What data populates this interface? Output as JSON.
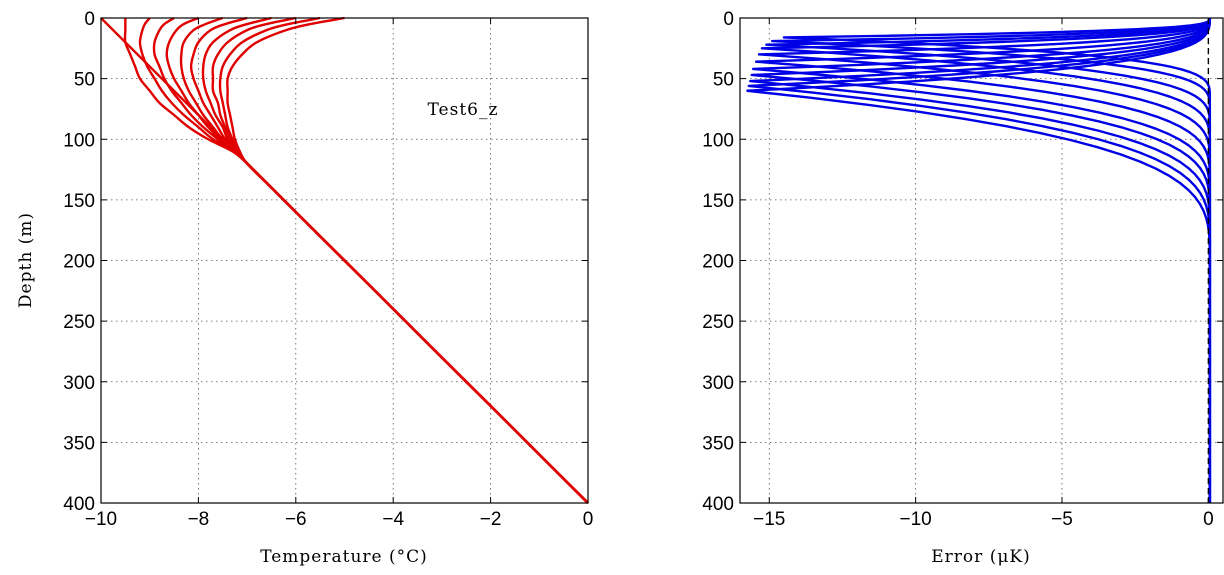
{
  "chart_data": [
    {
      "type": "line",
      "title": "",
      "annotation": "Test6_z",
      "xlabel": "Temperature (°C)",
      "ylabel": "Depth (m)",
      "xlim": [
        -10,
        0
      ],
      "ylim": [
        400,
        0
      ],
      "y_reversed": true,
      "grid": true,
      "xticks": [
        "−10",
        "−8",
        "−6",
        "−4",
        "−2",
        "0"
      ],
      "yticks": [
        "0",
        "50",
        "100",
        "150",
        "200",
        "250",
        "300",
        "350",
        "400"
      ],
      "color": "#e00000",
      "depth": [
        0,
        5,
        10,
        20,
        30,
        40,
        50,
        60,
        70,
        80,
        90,
        100,
        110,
        120,
        140,
        170,
        200,
        250,
        300,
        350,
        400
      ],
      "series": [
        {
          "surface_temperature": -9.5,
          "values": [
            -9.5,
            -9.5,
            -9.5,
            -9.5,
            -9.4,
            -9.3,
            -9.2,
            -9.0,
            -8.8,
            -8.5,
            -8.2,
            -7.8,
            -7.3,
            -7.0,
            -6.5,
            -5.75,
            -5.0,
            -3.75,
            -2.5,
            -1.25,
            0
          ]
        },
        {
          "surface_temperature": -9.0,
          "values": [
            -9.0,
            -9.1,
            -9.15,
            -9.2,
            -9.15,
            -9.05,
            -8.9,
            -8.75,
            -8.55,
            -8.3,
            -8.0,
            -7.7,
            -7.25,
            -7.0,
            -6.5,
            -5.75,
            -5.0,
            -3.75,
            -2.5,
            -1.25,
            0
          ]
        },
        {
          "surface_temperature": -8.5,
          "values": [
            -8.5,
            -8.7,
            -8.8,
            -8.9,
            -8.9,
            -8.8,
            -8.7,
            -8.55,
            -8.35,
            -8.15,
            -7.9,
            -7.6,
            -7.25,
            -7.0,
            -6.5,
            -5.75,
            -5.0,
            -3.75,
            -2.5,
            -1.25,
            0
          ]
        },
        {
          "surface_temperature": -8.0,
          "values": [
            -8.0,
            -8.3,
            -8.45,
            -8.6,
            -8.65,
            -8.6,
            -8.5,
            -8.35,
            -8.2,
            -8.0,
            -7.8,
            -7.55,
            -7.25,
            -7.0,
            -6.5,
            -5.75,
            -5.0,
            -3.75,
            -2.5,
            -1.25,
            0
          ]
        },
        {
          "surface_temperature": -7.5,
          "values": [
            -7.5,
            -7.85,
            -8.1,
            -8.3,
            -8.35,
            -8.35,
            -8.3,
            -8.2,
            -8.05,
            -7.9,
            -7.7,
            -7.5,
            -7.2,
            -7.0,
            -6.5,
            -5.75,
            -5.0,
            -3.75,
            -2.5,
            -1.25,
            0
          ]
        },
        {
          "surface_temperature": -7.0,
          "values": [
            -7.0,
            -7.45,
            -7.75,
            -8.0,
            -8.1,
            -8.15,
            -8.1,
            -8.0,
            -7.9,
            -7.75,
            -7.6,
            -7.45,
            -7.2,
            -7.0,
            -6.5,
            -5.75,
            -5.0,
            -3.75,
            -2.5,
            -1.25,
            0
          ]
        },
        {
          "surface_temperature": -6.5,
          "values": [
            -6.5,
            -7.0,
            -7.35,
            -7.7,
            -7.85,
            -7.9,
            -7.9,
            -7.85,
            -7.75,
            -7.65,
            -7.5,
            -7.4,
            -7.2,
            -7.0,
            -6.5,
            -5.75,
            -5.0,
            -3.75,
            -2.5,
            -1.25,
            0
          ]
        },
        {
          "surface_temperature": -6.0,
          "values": [
            -6.0,
            -6.6,
            -7.0,
            -7.4,
            -7.6,
            -7.7,
            -7.7,
            -7.7,
            -7.6,
            -7.55,
            -7.45,
            -7.35,
            -7.2,
            -7.0,
            -6.5,
            -5.75,
            -5.0,
            -3.75,
            -2.5,
            -1.25,
            0
          ]
        },
        {
          "surface_temperature": -5.5,
          "values": [
            -5.5,
            -6.15,
            -6.6,
            -7.1,
            -7.35,
            -7.5,
            -7.55,
            -7.55,
            -7.5,
            -7.45,
            -7.4,
            -7.3,
            -7.2,
            -7.0,
            -6.5,
            -5.75,
            -5.0,
            -3.75,
            -2.5,
            -1.25,
            0
          ]
        },
        {
          "surface_temperature": -5.0,
          "values": [
            -5.0,
            -5.7,
            -6.2,
            -6.8,
            -7.1,
            -7.3,
            -7.4,
            -7.4,
            -7.4,
            -7.35,
            -7.3,
            -7.25,
            -7.15,
            -7.0,
            -6.5,
            -5.75,
            -5.0,
            -3.75,
            -2.5,
            -1.25,
            0
          ]
        }
      ]
    },
    {
      "type": "line",
      "title": "",
      "xlabel": "Error (μK)",
      "ylabel": "",
      "xlim": [
        -16,
        0.5
      ],
      "ylim": [
        400,
        0
      ],
      "y_reversed": true,
      "grid": true,
      "xticks": [
        "−15",
        "−10",
        "−5",
        "0"
      ],
      "yticks": [
        "0",
        "50",
        "100",
        "150",
        "200",
        "250",
        "300",
        "350",
        "400"
      ],
      "color": "#0000e6",
      "reference_line": {
        "x": 0,
        "style": "dashed",
        "color": "#000000"
      },
      "series": [
        {
          "depth_of_peak": 16,
          "min_error": -14.5,
          "return_depth": 65
        },
        {
          "depth_of_peak": 19,
          "min_error": -14.9,
          "return_depth": 75
        },
        {
          "depth_of_peak": 22,
          "min_error": -15.1,
          "return_depth": 90
        },
        {
          "depth_of_peak": 25,
          "min_error": -15.25,
          "return_depth": 105
        },
        {
          "depth_of_peak": 30,
          "min_error": -15.35,
          "return_depth": 120
        },
        {
          "depth_of_peak": 36,
          "min_error": -15.45,
          "return_depth": 135
        },
        {
          "depth_of_peak": 42,
          "min_error": -15.55,
          "return_depth": 150
        },
        {
          "depth_of_peak": 47,
          "min_error": -15.6,
          "return_depth": 162
        },
        {
          "depth_of_peak": 52,
          "min_error": -15.65,
          "return_depth": 175
        },
        {
          "depth_of_peak": 56,
          "min_error": -15.7,
          "return_depth": 188
        },
        {
          "depth_of_peak": 60,
          "min_error": -15.75,
          "return_depth": 200
        }
      ]
    }
  ]
}
